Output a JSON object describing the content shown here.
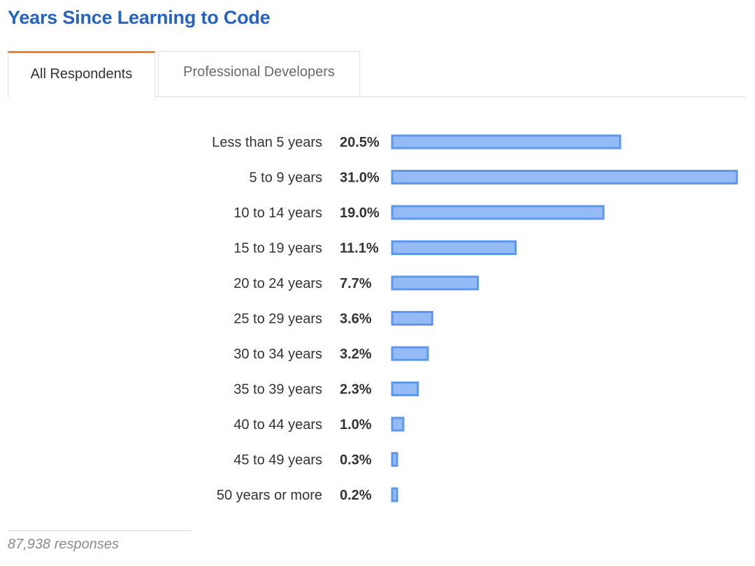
{
  "title": "Years Since Learning to Code",
  "tabs": [
    {
      "label": "All Respondents",
      "active": true
    },
    {
      "label": "Professional Developers",
      "active": false
    }
  ],
  "footer": {
    "responses": "87,938 responses"
  },
  "colors": {
    "title": "#2463c6",
    "tab_accent": "#f48024",
    "bar_fill": "#94bbf6",
    "bar_stroke": "#5e97ec"
  },
  "chart_data": {
    "type": "bar",
    "orientation": "horizontal",
    "categories": [
      "Less than 5 years",
      "5 to 9 years",
      "10 to 14 years",
      "15 to 19 years",
      "20 to 24 years",
      "25 to 29 years",
      "30 to 34 years",
      "35 to 39 years",
      "40 to 44 years",
      "45 to 49 years",
      "50 years or more"
    ],
    "values": [
      20.5,
      31.0,
      19.0,
      11.1,
      7.7,
      3.6,
      3.2,
      2.3,
      1.0,
      0.3,
      0.2
    ],
    "value_labels": [
      "20.5%",
      "31.0%",
      "19.0%",
      "11.1%",
      "7.7%",
      "3.6%",
      "3.2%",
      "2.3%",
      "1.0%",
      "0.3%",
      "0.2%"
    ],
    "unit": "%",
    "xlim": [
      0,
      31.0
    ],
    "grid": false,
    "legend": "none"
  }
}
